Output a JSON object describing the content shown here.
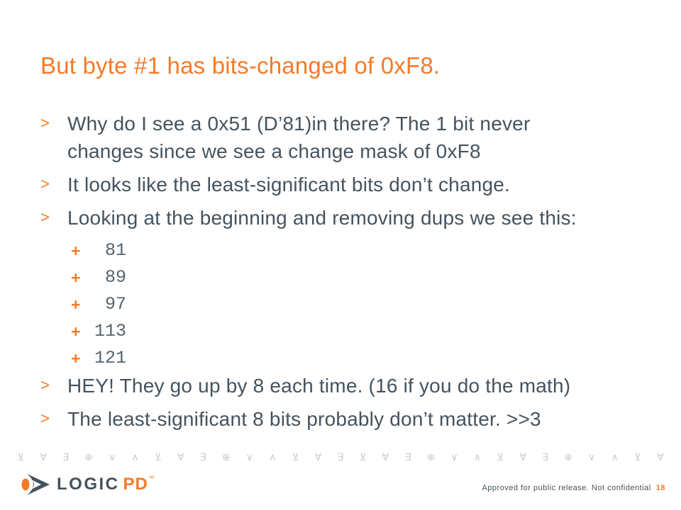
{
  "slide": {
    "title": "But byte #1 has bits-changed of 0xF8.",
    "markers": {
      "level1": ">",
      "level2": "+"
    },
    "bullets": [
      {
        "level": 1,
        "text": "Why do I see a 0x51 (D’81)in there? The 1 bit never\nchanges since we see a change mask of 0xF8"
      },
      {
        "level": 1,
        "text": "It looks like the least-significant bits don’t change."
      },
      {
        "level": 1,
        "text": "Looking at the beginning and removing dups we see this:"
      },
      {
        "level": 2,
        "text": " 81"
      },
      {
        "level": 2,
        "text": " 89"
      },
      {
        "level": 2,
        "text": " 97"
      },
      {
        "level": 2,
        "text": "113"
      },
      {
        "level": 2,
        "text": "121"
      },
      {
        "level": 1,
        "text": "HEY! They go up by 8 each time. (16 if you do the math)"
      },
      {
        "level": 1,
        "text": "The least-significant 8 bits probably don’t matter. >>3"
      }
    ]
  },
  "footer": {
    "band_glyphs": [
      "⊻",
      "∀",
      "∃",
      "⊕",
      "∨",
      "∧",
      "⊻",
      "∀",
      "∃",
      "⊕",
      "∨",
      "∧",
      "⊻",
      "∀",
      "∃",
      "⊻",
      "∀",
      "∃",
      "⊕",
      "∨",
      "∧",
      "⊻",
      "∀",
      "∃",
      "⊕",
      "∨",
      "∧",
      "⊻",
      "∀"
    ],
    "logo": {
      "primary": "LOGIC",
      "secondary": "PD",
      "trademark": "™"
    },
    "approval_text": "Approved for public release. Not confidential",
    "page_number": "18"
  },
  "colors": {
    "accent_orange": "#F47B29",
    "body_slate": "#45535E",
    "mono_slate": "#55646E",
    "band_gray": "#C6CBD1",
    "background": "#FFFFFF"
  }
}
